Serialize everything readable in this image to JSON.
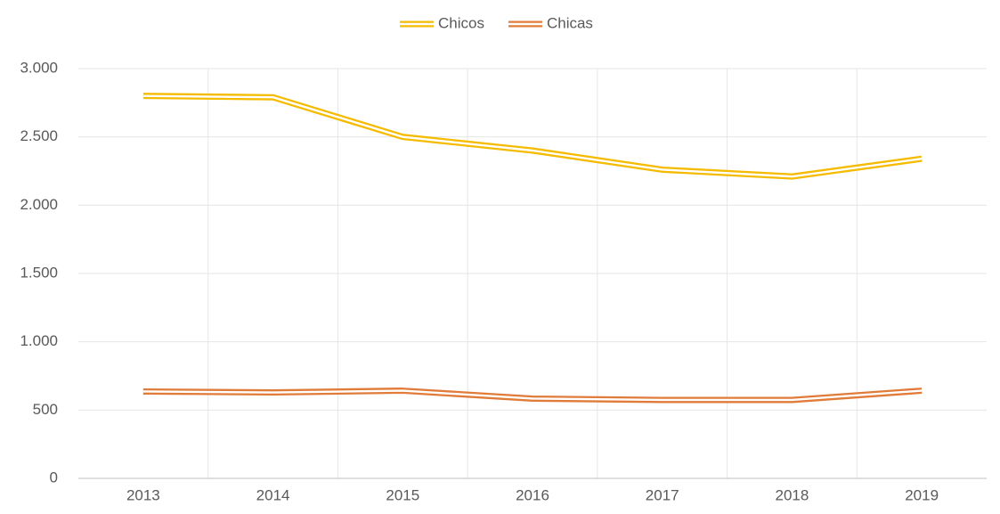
{
  "chart_data": {
    "type": "line",
    "categories": [
      "2013",
      "2014",
      "2015",
      "2016",
      "2017",
      "2018",
      "2019"
    ],
    "series": [
      {
        "name": "Chicos",
        "color": "#f5bb00",
        "values": [
          2800,
          2790,
          2500,
          2400,
          2260,
          2210,
          2340
        ]
      },
      {
        "name": "Chicas",
        "color": "#e07b39",
        "values": [
          636,
          629,
          642,
          584,
          574,
          574,
          642
        ]
      }
    ],
    "ylim": [
      0,
      3000
    ],
    "yticks": [
      0,
      500,
      {
        "value": 1000,
        "label": "1.000"
      },
      {
        "value": 1500,
        "label": "1.500"
      },
      {
        "value": 2000,
        "label": "2.000"
      },
      {
        "value": 2500,
        "label": "2.500"
      },
      {
        "value": 3000,
        "label": "3.000"
      }
    ],
    "grid": true,
    "legend": "top"
  }
}
